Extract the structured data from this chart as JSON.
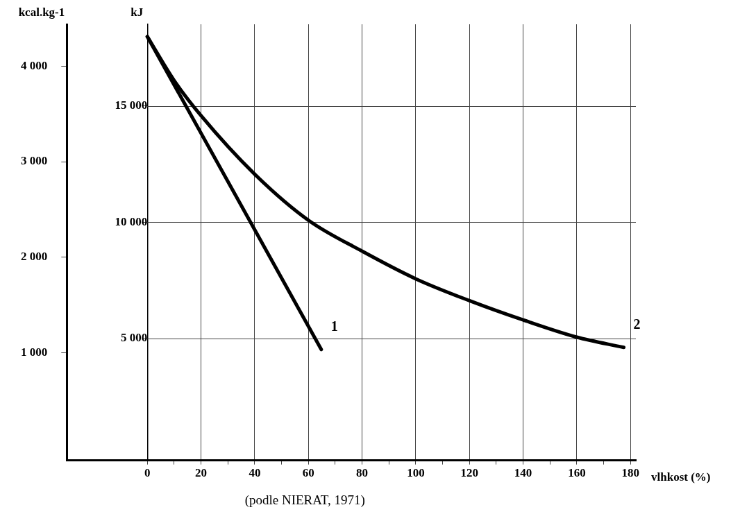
{
  "chart_data": {
    "type": "line",
    "xlabel": "vlhkost (%)",
    "ylabel": "kJ",
    "y2label": "kcal.kg-1",
    "annotations": [
      "(podle NIERAT, 1971)"
    ],
    "xlim": [
      -30,
      182
    ],
    "xticks": [
      0,
      {
        "value": 10,
        "label": null
      },
      20,
      {
        "value": 30,
        "label": null
      },
      40,
      {
        "value": 50,
        "label": null
      },
      60,
      {
        "value": 70,
        "label": null
      },
      80,
      {
        "value": 90,
        "label": null
      },
      100,
      {
        "value": 110,
        "label": null
      },
      120,
      {
        "value": 130,
        "label": null
      },
      140,
      {
        "value": 150,
        "label": null
      },
      160,
      {
        "value": 170,
        "label": null
      },
      180
    ],
    "ylim": [
      -240,
      18520
    ],
    "yticks": [
      {
        "value": 5000,
        "label": "5 000"
      },
      {
        "value": 10000,
        "label": "10 000"
      },
      {
        "value": 15000,
        "label": "15 000"
      }
    ],
    "y2lim": [
      -130,
      4440
    ],
    "y2ticks": [
      {
        "value": 1000,
        "label": "1 000"
      },
      {
        "value": 2000,
        "label": "2 000"
      },
      {
        "value": 3000,
        "label": "3 000"
      },
      {
        "value": 4000,
        "label": "4 000"
      }
    ],
    "grid": true,
    "legend": false,
    "marker": "none",
    "line_style": "solid",
    "series": [
      {
        "name": "1",
        "color": "#000000",
        "x": [
          0,
          64.8
        ],
        "values": [
          17990,
          4530
        ]
      },
      {
        "name": "2",
        "color": "#000000",
        "x": [
          0,
          10,
          20,
          40,
          60,
          80,
          100,
          120,
          140,
          160,
          177.5
        ],
        "values": [
          17990,
          16100,
          14590,
          12070,
          10090,
          8760,
          7570,
          6630,
          5800,
          5060,
          4620
        ]
      }
    ]
  }
}
